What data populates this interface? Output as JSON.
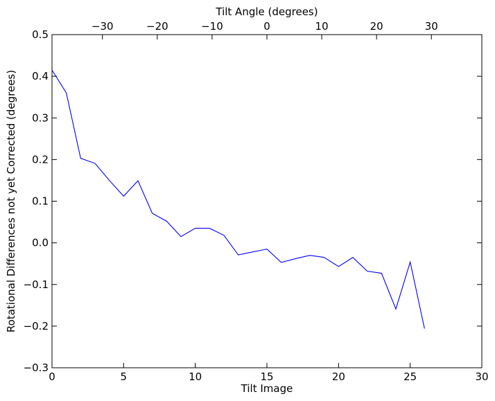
{
  "chart_data": {
    "type": "line",
    "title": "",
    "xlabel": "Tilt Image",
    "ylabel": "Rotational Differences not yet Corrected (degrees)",
    "top_xlabel": "Tilt Angle (degrees)",
    "xlim": [
      0,
      30
    ],
    "ylim": [
      -0.3,
      0.5
    ],
    "x_ticks": [
      0,
      5,
      10,
      15,
      20,
      25,
      30
    ],
    "y_ticks": [
      -0.3,
      -0.2,
      -0.1,
      0.0,
      0.1,
      0.2,
      0.3,
      0.4,
      0.5
    ],
    "x_tick_labels": [
      "0",
      "5",
      "10",
      "15",
      "20",
      "25",
      "30"
    ],
    "y_tick_labels": [
      "−0.3",
      "−0.2",
      "−0.1",
      "0.0",
      "0.1",
      "0.2",
      "0.3",
      "0.4",
      "0.5"
    ],
    "top_ticks": [
      -30,
      -20,
      -10,
      0,
      10,
      20,
      30
    ],
    "top_tick_labels": [
      "−30",
      "−20",
      "−10",
      "0",
      "10",
      "20",
      "30"
    ],
    "top_xlim": [
      -39.2,
      39.2
    ],
    "grid": false,
    "series": [
      {
        "color": "#0000ff",
        "x": [
          0,
          1,
          2,
          3,
          4,
          5,
          6,
          7,
          8,
          9,
          10,
          11,
          12,
          13,
          14,
          15,
          16,
          17,
          18,
          19,
          20,
          21,
          22,
          23,
          24,
          25,
          26
        ],
        "y": [
          0.415,
          0.36,
          0.203,
          0.191,
          0.15,
          0.112,
          0.149,
          0.071,
          0.052,
          0.015,
          0.035,
          0.035,
          0.018,
          -0.029,
          -0.022,
          -0.015,
          -0.047,
          -0.038,
          -0.03,
          -0.035,
          -0.057,
          -0.035,
          -0.068,
          -0.073,
          -0.159,
          -0.046,
          -0.206
        ]
      }
    ]
  }
}
